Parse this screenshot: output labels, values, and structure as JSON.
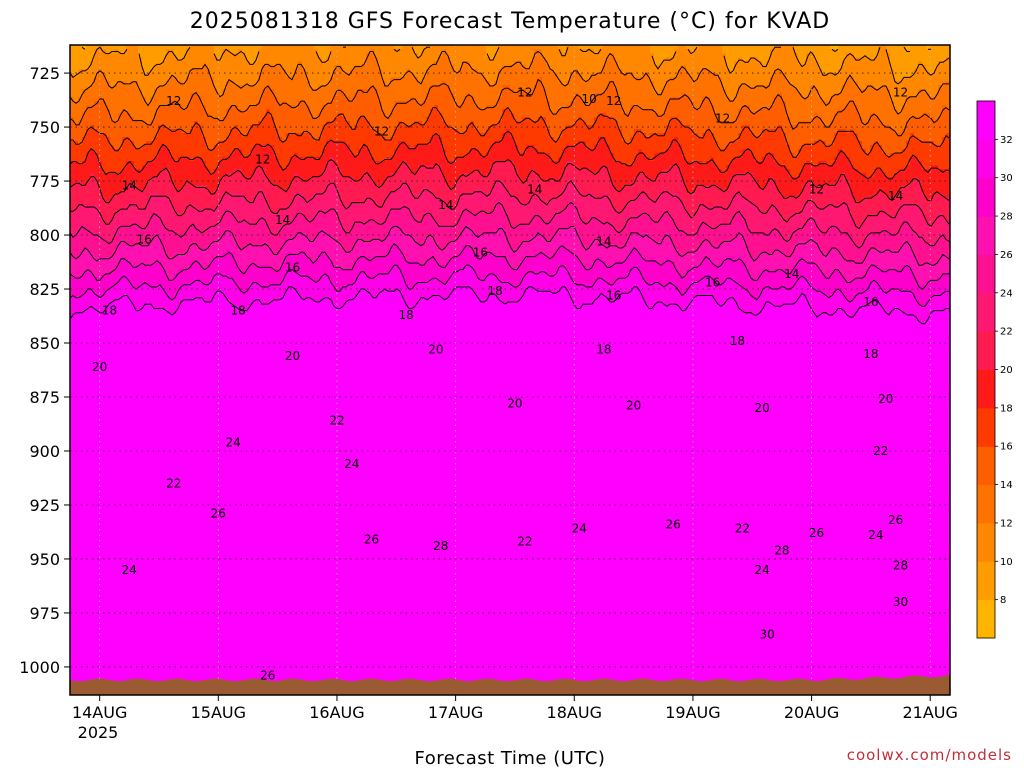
{
  "chart_data": {
    "type": "heatmap",
    "title": "2025081318 GFS Forecast Temperature (°C) for KVAD",
    "xlabel": "Forecast Time (UTC)",
    "ylabel": "",
    "y_ticks": [
      "725",
      "750",
      "775",
      "800",
      "825",
      "850",
      "875",
      "900",
      "925",
      "950",
      "975",
      "1000"
    ],
    "y_values": [
      725,
      750,
      775,
      800,
      825,
      850,
      875,
      900,
      925,
      950,
      975,
      1000
    ],
    "ylim": [
      712,
      1013
    ],
    "y_inverted": true,
    "x_ticks": [
      "14AUG",
      "15AUG",
      "16AUG",
      "17AUG",
      "18AUG",
      "19AUG",
      "20AUG",
      "21AUG"
    ],
    "x_year_label": "2025",
    "xlim_hours": [
      0,
      178
    ],
    "surface_pressure_hpa": 1006,
    "colorbar_levels": [
      8,
      10,
      12,
      14,
      16,
      18,
      20,
      22,
      24,
      26,
      28,
      30,
      32
    ],
    "colorbar_colors": [
      "#ffb400",
      "#ff9c00",
      "#ff8800",
      "#ff7200",
      "#ff5e00",
      "#ff3a00",
      "#ff1a1a",
      "#ff1a50",
      "#ff1872",
      "#ff1090",
      "#ff10b0",
      "#ff00cc",
      "#ff00e8",
      "#ff00ff"
    ],
    "contour_labels": [
      {
        "t": 21,
        "p": 738,
        "v": "12"
      },
      {
        "t": 63,
        "p": 752,
        "v": "12"
      },
      {
        "t": 39,
        "p": 765,
        "v": "12"
      },
      {
        "t": 92,
        "p": 734,
        "v": "12"
      },
      {
        "t": 105,
        "p": 737,
        "v": "10"
      },
      {
        "t": 110,
        "p": 738,
        "v": "12"
      },
      {
        "t": 132,
        "p": 746,
        "v": "12"
      },
      {
        "t": 151,
        "p": 779,
        "v": "12"
      },
      {
        "t": 168,
        "p": 734,
        "v": "12"
      },
      {
        "t": 12,
        "p": 777,
        "v": "14"
      },
      {
        "t": 43,
        "p": 793,
        "v": "14"
      },
      {
        "t": 76,
        "p": 786,
        "v": "14"
      },
      {
        "t": 94,
        "p": 779,
        "v": "14"
      },
      {
        "t": 108,
        "p": 803,
        "v": "14"
      },
      {
        "t": 146,
        "p": 818,
        "v": "14"
      },
      {
        "t": 167,
        "p": 782,
        "v": "14"
      },
      {
        "t": 15,
        "p": 802,
        "v": "16"
      },
      {
        "t": 45,
        "p": 815,
        "v": "16"
      },
      {
        "t": 83,
        "p": 808,
        "v": "16"
      },
      {
        "t": 110,
        "p": 828,
        "v": "16"
      },
      {
        "t": 130,
        "p": 822,
        "v": "16"
      },
      {
        "t": 162,
        "p": 831,
        "v": "16"
      },
      {
        "t": 8,
        "p": 835,
        "v": "18"
      },
      {
        "t": 34,
        "p": 835,
        "v": "18"
      },
      {
        "t": 68,
        "p": 837,
        "v": "18"
      },
      {
        "t": 86,
        "p": 826,
        "v": "18"
      },
      {
        "t": 108,
        "p": 853,
        "v": "18"
      },
      {
        "t": 135,
        "p": 849,
        "v": "18"
      },
      {
        "t": 162,
        "p": 855,
        "v": "18"
      },
      {
        "t": 6,
        "p": 861,
        "v": "20"
      },
      {
        "t": 45,
        "p": 856,
        "v": "20"
      },
      {
        "t": 74,
        "p": 853,
        "v": "20"
      },
      {
        "t": 90,
        "p": 878,
        "v": "20"
      },
      {
        "t": 114,
        "p": 879,
        "v": "20"
      },
      {
        "t": 140,
        "p": 880,
        "v": "20"
      },
      {
        "t": 165,
        "p": 876,
        "v": "20"
      },
      {
        "t": 54,
        "p": 886,
        "v": "22"
      },
      {
        "t": 21,
        "p": 915,
        "v": "22"
      },
      {
        "t": 92,
        "p": 942,
        "v": "22"
      },
      {
        "t": 136,
        "p": 936,
        "v": "22"
      },
      {
        "t": 164,
        "p": 900,
        "v": "22"
      },
      {
        "t": 33,
        "p": 896,
        "v": "24"
      },
      {
        "t": 57,
        "p": 906,
        "v": "24"
      },
      {
        "t": 12,
        "p": 955,
        "v": "24"
      },
      {
        "t": 103,
        "p": 936,
        "v": "24"
      },
      {
        "t": 140,
        "p": 955,
        "v": "24"
      },
      {
        "t": 163,
        "p": 939,
        "v": "24"
      },
      {
        "t": 30,
        "p": 929,
        "v": "26"
      },
      {
        "t": 61,
        "p": 941,
        "v": "26"
      },
      {
        "t": 122,
        "p": 934,
        "v": "26"
      },
      {
        "t": 151,
        "p": 938,
        "v": "26"
      },
      {
        "t": 167,
        "p": 932,
        "v": "26"
      },
      {
        "t": 40,
        "p": 1004,
        "v": "26"
      },
      {
        "t": 75,
        "p": 944,
        "v": "28"
      },
      {
        "t": 144,
        "p": 946,
        "v": "28"
      },
      {
        "t": 168,
        "p": 953,
        "v": "28"
      },
      {
        "t": 141,
        "p": 985,
        "v": "30"
      },
      {
        "t": 168,
        "p": 970,
        "v": "30"
      }
    ]
  },
  "credit": "coolwx.com/models"
}
